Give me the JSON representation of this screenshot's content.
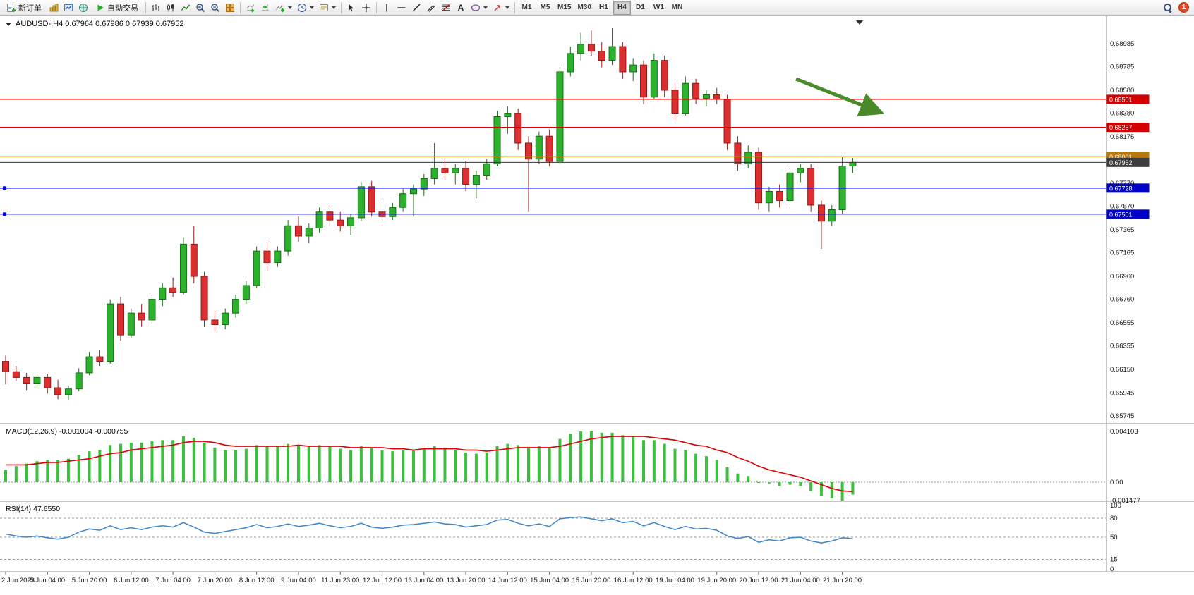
{
  "toolbar": {
    "new_order_label": "新订单",
    "autotrade_label": "自动交易",
    "timeframes": [
      "M1",
      "M5",
      "M15",
      "M30",
      "H1",
      "H4",
      "D1",
      "W1",
      "MN"
    ],
    "active_timeframe": "H4",
    "notification_count": "1",
    "text_tool_label": "A",
    "icons": [
      "new-order-icon",
      "chart-profiles-icon",
      "open-chart-icon",
      "market-watch-icon",
      "play-icon",
      "bar-chart-icon",
      "candlestick-chart-icon",
      "line-chart-icon",
      "zoom-in-icon",
      "zoom-out-icon",
      "tile-windows-icon",
      "auto-scroll-icon",
      "chart-shift-icon",
      "indicators-icon",
      "clock-icon",
      "templates-icon",
      "cursor-icon",
      "crosshair-icon",
      "vline-icon",
      "hline-icon",
      "trendline-icon",
      "channel-icon",
      "fibonacci-icon",
      "text-icon",
      "shapes-icon",
      "arrows-icon",
      "search-icon"
    ]
  },
  "colors": {
    "candle_up": "#2DB22D",
    "candle_up_stroke": "#156E15",
    "candle_down": "#DD2F2F",
    "candle_down_stroke": "#8F1A1A",
    "macd_hist": "#3CBF3C",
    "macd_signal": "#E00000",
    "rsi_line": "#3D85C8",
    "line_red": "#E00000",
    "line_orange": "#C88019",
    "line_blue": "#0000E6",
    "line_current": "#333333",
    "badge_red": "#D40000",
    "badge_orange": "#B8770A",
    "badge_dark": "#3C3C3C",
    "badge_blue": "#0000C8",
    "arrow_green": "#4A8A2A"
  },
  "chart_data": {
    "type": "candlestick",
    "symbol_title": "AUDUSD-,H4 0.67964 0.67986 0.67939 0.67952",
    "ohlc_display": {
      "open": "0.67964",
      "high": "0.67986",
      "low": "0.67939",
      "close": "0.67952"
    },
    "price_axis_labels": [
      "0.68985",
      "0.68785",
      "0.68580",
      "0.68380",
      "0.68175",
      "0.67770",
      "0.67570",
      "0.67365",
      "0.67165",
      "0.66960",
      "0.66760",
      "0.66555",
      "0.66355",
      "0.66150",
      "0.65945",
      "0.65745"
    ],
    "hlines": [
      {
        "text": "0.68501",
        "value": 0.68501,
        "kind": "resistance",
        "color_key": "line_red",
        "badge_key": "badge_red",
        "width": 1.2,
        "handles": false
      },
      {
        "text": "0.68257",
        "value": 0.68257,
        "kind": "resistance",
        "color_key": "line_red",
        "badge_key": "badge_red",
        "width": 1.2,
        "handles": false
      },
      {
        "text": "0.68001",
        "value": 0.68001,
        "kind": "level",
        "color_key": "line_orange",
        "badge_key": "badge_orange",
        "width": 1.4,
        "handles": false
      },
      {
        "text": "0.67952",
        "value": 0.67952,
        "kind": "current-price",
        "color_key": "line_current",
        "badge_key": "badge_dark",
        "width": 1,
        "handles": false
      },
      {
        "text": "0.67728",
        "value": 0.67728,
        "kind": "support",
        "color_key": "line_blue",
        "badge_key": "badge_blue",
        "width": 1.2,
        "handles": true
      },
      {
        "text": "0.67501",
        "value": 0.67501,
        "kind": "support",
        "color_key": "line_blue",
        "badge_key": "badge_blue",
        "width": 1.2,
        "handles": true
      }
    ],
    "candles": [
      [
        0.6622,
        0.6627,
        0.6602,
        0.6613
      ],
      [
        0.6613,
        0.6618,
        0.6605,
        0.6608
      ],
      [
        0.6608,
        0.6612,
        0.6597,
        0.6603
      ],
      [
        0.6603,
        0.661,
        0.6599,
        0.6608
      ],
      [
        0.6608,
        0.6611,
        0.6594,
        0.6599
      ],
      [
        0.6599,
        0.6606,
        0.6589,
        0.6593
      ],
      [
        0.6593,
        0.6601,
        0.6588,
        0.6598
      ],
      [
        0.6598,
        0.6616,
        0.6596,
        0.6612
      ],
      [
        0.6612,
        0.663,
        0.661,
        0.6626
      ],
      [
        0.6626,
        0.6632,
        0.6618,
        0.6622
      ],
      [
        0.6622,
        0.6676,
        0.662,
        0.6672
      ],
      [
        0.6672,
        0.6678,
        0.664,
        0.6645
      ],
      [
        0.6645,
        0.6668,
        0.6642,
        0.6664
      ],
      [
        0.6664,
        0.6672,
        0.6652,
        0.6658
      ],
      [
        0.6658,
        0.668,
        0.6655,
        0.6676
      ],
      [
        0.6676,
        0.669,
        0.667,
        0.6686
      ],
      [
        0.6686,
        0.6695,
        0.6678,
        0.6682
      ],
      [
        0.6682,
        0.673,
        0.668,
        0.6724
      ],
      [
        0.6724,
        0.674,
        0.669,
        0.6696
      ],
      [
        0.6696,
        0.67,
        0.6652,
        0.6658
      ],
      [
        0.6658,
        0.6666,
        0.6648,
        0.6654
      ],
      [
        0.6654,
        0.6668,
        0.665,
        0.6664
      ],
      [
        0.6664,
        0.668,
        0.666,
        0.6676
      ],
      [
        0.6676,
        0.6692,
        0.6672,
        0.6688
      ],
      [
        0.6688,
        0.6722,
        0.6686,
        0.6718
      ],
      [
        0.6718,
        0.6726,
        0.6702,
        0.6708
      ],
      [
        0.6708,
        0.6722,
        0.6704,
        0.6718
      ],
      [
        0.6718,
        0.6745,
        0.6714,
        0.674
      ],
      [
        0.674,
        0.6748,
        0.6726,
        0.6731
      ],
      [
        0.6731,
        0.6742,
        0.6725,
        0.6738
      ],
      [
        0.6738,
        0.6756,
        0.6734,
        0.6752
      ],
      [
        0.6752,
        0.6758,
        0.674,
        0.6745
      ],
      [
        0.6745,
        0.6752,
        0.6735,
        0.674
      ],
      [
        0.674,
        0.675,
        0.6732,
        0.6747
      ],
      [
        0.6747,
        0.6778,
        0.6744,
        0.6774
      ],
      [
        0.6774,
        0.6779,
        0.6748,
        0.6752
      ],
      [
        0.6752,
        0.6762,
        0.6744,
        0.6748
      ],
      [
        0.6748,
        0.676,
        0.6745,
        0.6756
      ],
      [
        0.6756,
        0.6772,
        0.6752,
        0.6768
      ],
      [
        0.6768,
        0.6776,
        0.6748,
        0.6772
      ],
      [
        0.6772,
        0.6785,
        0.6766,
        0.6781
      ],
      [
        0.6781,
        0.6812,
        0.6776,
        0.679
      ],
      [
        0.679,
        0.6798,
        0.678,
        0.6786
      ],
      [
        0.6786,
        0.6794,
        0.6776,
        0.679
      ],
      [
        0.679,
        0.6796,
        0.677,
        0.6776
      ],
      [
        0.6776,
        0.6788,
        0.6764,
        0.6784
      ],
      [
        0.6784,
        0.6798,
        0.678,
        0.6794
      ],
      [
        0.6794,
        0.684,
        0.6792,
        0.6835
      ],
      [
        0.6835,
        0.6844,
        0.682,
        0.6838
      ],
      [
        0.6838,
        0.6842,
        0.6806,
        0.6812
      ],
      [
        0.6812,
        0.6818,
        0.6752,
        0.6798
      ],
      [
        0.6798,
        0.6822,
        0.6794,
        0.6818
      ],
      [
        0.6818,
        0.6824,
        0.6792,
        0.6796
      ],
      [
        0.6796,
        0.6878,
        0.6794,
        0.6874
      ],
      [
        0.6874,
        0.6896,
        0.687,
        0.689
      ],
      [
        0.689,
        0.6908,
        0.6884,
        0.6898
      ],
      [
        0.6898,
        0.691,
        0.6888,
        0.6892
      ],
      [
        0.6892,
        0.69,
        0.6878,
        0.6884
      ],
      [
        0.6884,
        0.6912,
        0.688,
        0.6896
      ],
      [
        0.6896,
        0.69,
        0.6868,
        0.6874
      ],
      [
        0.6874,
        0.6886,
        0.6866,
        0.688
      ],
      [
        0.688,
        0.6884,
        0.6846,
        0.6852
      ],
      [
        0.6852,
        0.689,
        0.685,
        0.6884
      ],
      [
        0.6884,
        0.6888,
        0.6852,
        0.6858
      ],
      [
        0.6858,
        0.6864,
        0.6832,
        0.6838
      ],
      [
        0.6838,
        0.687,
        0.6836,
        0.6864
      ],
      [
        0.6864,
        0.6868,
        0.6846,
        0.6851
      ],
      [
        0.6851,
        0.6858,
        0.6844,
        0.6854
      ],
      [
        0.6854,
        0.686,
        0.6846,
        0.685
      ],
      [
        0.685,
        0.6854,
        0.6806,
        0.6812
      ],
      [
        0.6812,
        0.6818,
        0.6788,
        0.6794
      ],
      [
        0.6794,
        0.681,
        0.679,
        0.6804
      ],
      [
        0.6804,
        0.6808,
        0.6754,
        0.676
      ],
      [
        0.676,
        0.6774,
        0.6752,
        0.677
      ],
      [
        0.677,
        0.6776,
        0.6756,
        0.6762
      ],
      [
        0.6762,
        0.679,
        0.6758,
        0.6786
      ],
      [
        0.6786,
        0.6794,
        0.6778,
        0.679
      ],
      [
        0.679,
        0.6794,
        0.6752,
        0.6758
      ],
      [
        0.6758,
        0.6762,
        0.672,
        0.6744
      ],
      [
        0.6744,
        0.6758,
        0.674,
        0.6754
      ],
      [
        0.6754,
        0.68,
        0.675,
        0.6792
      ],
      [
        0.6792,
        0.6799,
        0.6786,
        0.67952
      ]
    ],
    "time_labels": [
      "2 Jun 2023",
      "5 Jun 04:00",
      "5 Jun 20:00",
      "6 Jun 12:00",
      "7 Jun 04:00",
      "7 Jun 20:00",
      "8 Jun 12:00",
      "9 Jun 04:00",
      "11 Jun 23:00",
      "12 Jun 12:00",
      "13 Jun 04:00",
      "13 Jun 20:00",
      "14 Jun 12:00",
      "15 Jun 04:00",
      "15 Jun 20:00",
      "16 Jun 12:00",
      "19 Jun 04:00",
      "19 Jun 20:00",
      "20 Jun 12:00",
      "21 Jun 04:00",
      "21 Jun 20:00"
    ],
    "time_label_indices": [
      0,
      4,
      8,
      12,
      16,
      20,
      24,
      28,
      32,
      36,
      40,
      44,
      48,
      52,
      56,
      60,
      64,
      68,
      72,
      76,
      80
    ],
    "macd": {
      "label": "MACD(12,26,9)",
      "values_text": "-0.001004 -0.000755",
      "scale_top": "0.004103",
      "scale_zero": "0.00",
      "scale_bottom": "-0.001477",
      "scale_top_v": 0.004103,
      "scale_bottom_v": -0.001477,
      "hist": [
        0.001,
        0.0013,
        0.0015,
        0.0017,
        0.0018,
        0.0018,
        0.0019,
        0.0022,
        0.0025,
        0.0026,
        0.003,
        0.0031,
        0.0032,
        0.0032,
        0.0033,
        0.0034,
        0.0034,
        0.0037,
        0.0036,
        0.0032,
        0.0028,
        0.0026,
        0.0026,
        0.0027,
        0.003,
        0.0029,
        0.0029,
        0.0031,
        0.003,
        0.0029,
        0.003,
        0.0029,
        0.0027,
        0.0026,
        0.0029,
        0.0028,
        0.0026,
        0.0025,
        0.0026,
        0.0026,
        0.0027,
        0.0029,
        0.0028,
        0.0026,
        0.0024,
        0.0023,
        0.0024,
        0.0029,
        0.0031,
        0.003,
        0.0028,
        0.0029,
        0.0028,
        0.0035,
        0.0039,
        0.0041,
        0.0041,
        0.004,
        0.004,
        0.0038,
        0.0037,
        0.0034,
        0.0034,
        0.0031,
        0.0027,
        0.0026,
        0.0023,
        0.0021,
        0.0018,
        0.0012,
        0.0007,
        0.0005,
        0.0,
        -0.0001,
        -0.0003,
        -0.0002,
        -0.0003,
        -0.0007,
        -0.0011,
        -0.0013,
        -0.00148,
        -0.001
      ],
      "signal": [
        0.0014,
        0.0014,
        0.0014,
        0.0015,
        0.0016,
        0.0016,
        0.0017,
        0.0018,
        0.0019,
        0.0021,
        0.0023,
        0.0024,
        0.0026,
        0.0027,
        0.0028,
        0.0029,
        0.003,
        0.0032,
        0.0033,
        0.0033,
        0.0032,
        0.003,
        0.0029,
        0.0029,
        0.0029,
        0.0029,
        0.0029,
        0.0029,
        0.003,
        0.0029,
        0.0029,
        0.0029,
        0.0029,
        0.0028,
        0.0028,
        0.0028,
        0.0028,
        0.0027,
        0.0027,
        0.0026,
        0.0027,
        0.0027,
        0.0027,
        0.0027,
        0.0026,
        0.0026,
        0.0025,
        0.0026,
        0.0027,
        0.0028,
        0.0028,
        0.0028,
        0.0028,
        0.0029,
        0.0031,
        0.0033,
        0.0035,
        0.0036,
        0.0037,
        0.0037,
        0.0037,
        0.0037,
        0.0036,
        0.0035,
        0.0034,
        0.0032,
        0.003,
        0.0029,
        0.0026,
        0.0024,
        0.002,
        0.0017,
        0.0013,
        0.001,
        0.0008,
        0.0006,
        0.0004,
        0.0001,
        -0.0002,
        -0.0005,
        -0.0007,
        -0.00076
      ]
    },
    "rsi": {
      "label": "RSI(14)",
      "value_text": "47.6550",
      "levels": [
        "100",
        "80",
        "50",
        "15",
        "0"
      ],
      "levels_v": [
        100,
        80,
        50,
        15,
        0
      ],
      "dashed_levels": [
        80,
        50,
        15
      ],
      "values": [
        55,
        52,
        50,
        52,
        49,
        47,
        50,
        58,
        63,
        61,
        68,
        62,
        65,
        62,
        66,
        68,
        66,
        73,
        66,
        58,
        56,
        59,
        62,
        65,
        70,
        65,
        67,
        71,
        67,
        69,
        72,
        68,
        65,
        67,
        72,
        66,
        64,
        66,
        69,
        70,
        72,
        74,
        71,
        70,
        66,
        68,
        70,
        77,
        78,
        72,
        68,
        71,
        67,
        79,
        81,
        82,
        79,
        76,
        79,
        73,
        75,
        68,
        73,
        67,
        62,
        67,
        63,
        64,
        61,
        52,
        48,
        51,
        42,
        46,
        44,
        49,
        50,
        44,
        41,
        44,
        49,
        47.65
      ]
    },
    "annotation_arrow": {
      "kind": "trend-arrow-down-right"
    }
  }
}
